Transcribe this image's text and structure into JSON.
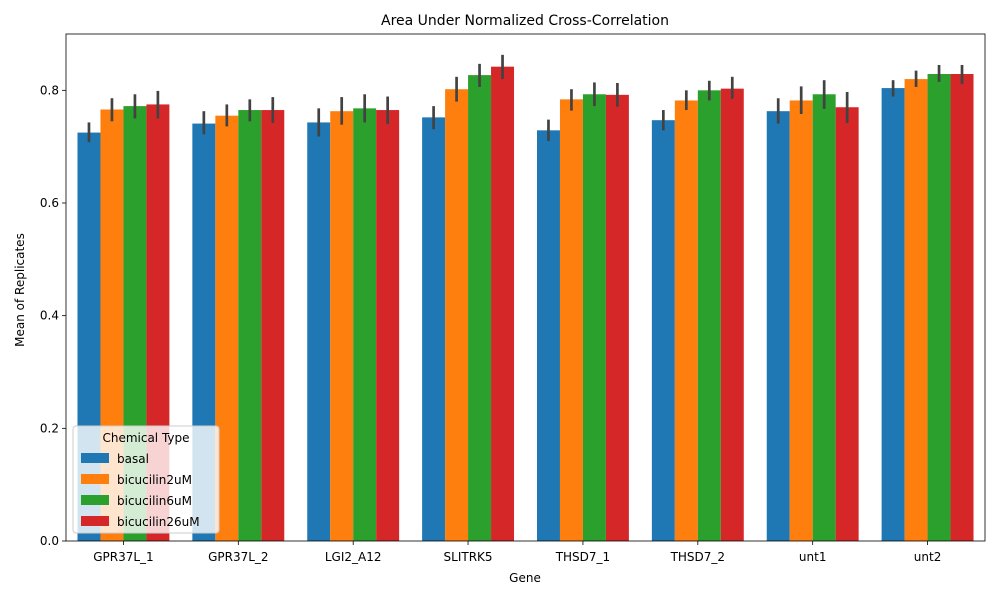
{
  "chart_data": {
    "type": "bar",
    "title": "Area Under Normalized Cross-Correlation",
    "xlabel": "Gene",
    "ylabel": "Mean of Replicates",
    "ylim": [
      0,
      0.9
    ],
    "yticks": [
      "0.0",
      "0.2",
      "0.4",
      "0.6",
      "0.8"
    ],
    "grid": false,
    "legend": {
      "title": "Chemical Type",
      "position": "lower-left"
    },
    "categories": [
      "GPR37L_1",
      "GPR37L_2",
      "LGI2_A12",
      "SLITRK5",
      "THSD7_1",
      "THSD7_2",
      "unt1",
      "unt2"
    ],
    "series": [
      {
        "name": "basal",
        "color": "#1f77b4",
        "values": [
          0.725,
          0.741,
          0.743,
          0.752,
          0.729,
          0.747,
          0.763,
          0.804
        ],
        "ci_low": [
          0.708,
          0.722,
          0.718,
          0.731,
          0.71,
          0.729,
          0.741,
          0.789
        ],
        "ci_high": [
          0.743,
          0.763,
          0.768,
          0.772,
          0.748,
          0.765,
          0.786,
          0.818
        ]
      },
      {
        "name": "bicucilin2uM",
        "color": "#ff7f0e",
        "values": [
          0.766,
          0.755,
          0.763,
          0.802,
          0.784,
          0.782,
          0.782,
          0.82
        ],
        "ci_low": [
          0.745,
          0.736,
          0.739,
          0.78,
          0.764,
          0.765,
          0.758,
          0.806
        ],
        "ci_high": [
          0.786,
          0.775,
          0.788,
          0.824,
          0.802,
          0.8,
          0.807,
          0.835
        ]
      },
      {
        "name": "bicucilin6uM",
        "color": "#2ca02c",
        "values": [
          0.772,
          0.765,
          0.768,
          0.827,
          0.793,
          0.8,
          0.793,
          0.829
        ],
        "ci_low": [
          0.75,
          0.745,
          0.743,
          0.806,
          0.772,
          0.782,
          0.767,
          0.815
        ],
        "ci_high": [
          0.793,
          0.784,
          0.793,
          0.847,
          0.814,
          0.817,
          0.818,
          0.845
        ]
      },
      {
        "name": "bicucilin26uM",
        "color": "#d62728",
        "values": [
          0.775,
          0.765,
          0.765,
          0.842,
          0.792,
          0.803,
          0.77,
          0.829
        ],
        "ci_low": [
          0.75,
          0.742,
          0.74,
          0.82,
          0.771,
          0.785,
          0.742,
          0.811
        ],
        "ci_high": [
          0.799,
          0.788,
          0.789,
          0.863,
          0.813,
          0.824,
          0.797,
          0.845
        ]
      }
    ]
  }
}
